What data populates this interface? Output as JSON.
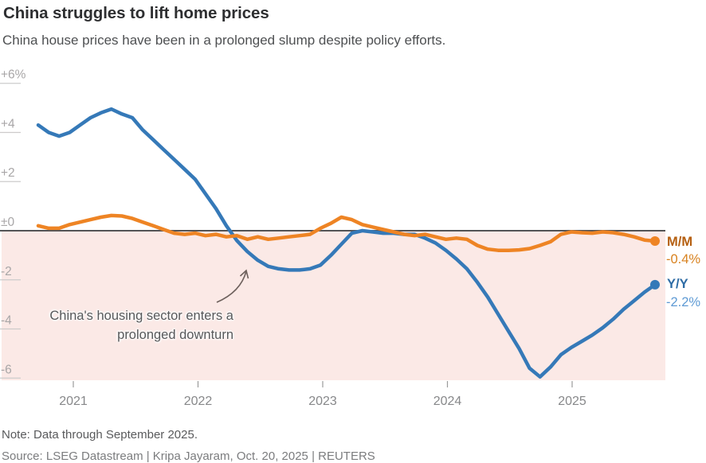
{
  "header": {
    "title": "China struggles to lift home prices",
    "subtitle": "China house prices have been in a prolonged slump despite policy efforts."
  },
  "chart_data": {
    "type": "line",
    "title": "China struggles to lift home prices",
    "x": [
      "2020-10",
      "2020-11",
      "2020-12",
      "2021-01",
      "2021-02",
      "2021-03",
      "2021-04",
      "2021-05",
      "2021-06",
      "2021-07",
      "2021-08",
      "2021-09",
      "2021-10",
      "2021-11",
      "2021-12",
      "2022-01",
      "2022-02",
      "2022-03",
      "2022-04",
      "2022-05",
      "2022-06",
      "2022-07",
      "2022-08",
      "2022-09",
      "2022-10",
      "2022-11",
      "2022-12",
      "2023-01",
      "2023-02",
      "2023-03",
      "2023-04",
      "2023-05",
      "2023-06",
      "2023-07",
      "2023-08",
      "2023-09",
      "2023-10",
      "2023-11",
      "2023-12",
      "2024-01",
      "2024-02",
      "2024-03",
      "2024-04",
      "2024-05",
      "2024-06",
      "2024-07",
      "2024-08",
      "2024-09",
      "2024-10",
      "2024-11",
      "2024-12",
      "2025-01",
      "2025-02",
      "2025-03",
      "2025-04",
      "2025-05",
      "2025-06",
      "2025-07",
      "2025-08",
      "2025-09"
    ],
    "series": [
      {
        "name": "Y/Y",
        "label": "Y/Y",
        "value_label": "-2.2%",
        "color": "#3579b8",
        "values": [
          4.3,
          4.0,
          3.85,
          4.0,
          4.3,
          4.6,
          4.8,
          4.95,
          4.75,
          4.6,
          4.1,
          3.7,
          3.3,
          2.9,
          2.5,
          2.1,
          1.5,
          0.9,
          0.2,
          -0.4,
          -0.85,
          -1.2,
          -1.45,
          -1.55,
          -1.6,
          -1.6,
          -1.55,
          -1.4,
          -1.0,
          -0.55,
          -0.1,
          0.0,
          -0.05,
          -0.1,
          -0.1,
          -0.15,
          -0.15,
          -0.3,
          -0.5,
          -0.8,
          -1.15,
          -1.55,
          -2.1,
          -2.7,
          -3.4,
          -4.1,
          -4.8,
          -5.6,
          -5.95,
          -5.55,
          -5.05,
          -4.75,
          -4.5,
          -4.25,
          -3.95,
          -3.6,
          -3.2,
          -2.85,
          -2.5,
          -2.2
        ]
      },
      {
        "name": "M/M",
        "label": "M/M",
        "value_label": "-0.4%",
        "color": "#ee8424",
        "values": [
          0.2,
          0.1,
          0.1,
          0.25,
          0.35,
          0.45,
          0.55,
          0.62,
          0.6,
          0.5,
          0.35,
          0.2,
          0.05,
          -0.1,
          -0.15,
          -0.1,
          -0.2,
          -0.15,
          -0.25,
          -0.2,
          -0.35,
          -0.25,
          -0.35,
          -0.3,
          -0.25,
          -0.2,
          -0.15,
          0.1,
          0.3,
          0.55,
          0.45,
          0.25,
          0.15,
          0.05,
          -0.05,
          -0.15,
          -0.2,
          -0.15,
          -0.25,
          -0.35,
          -0.3,
          -0.35,
          -0.6,
          -0.75,
          -0.8,
          -0.8,
          -0.78,
          -0.73,
          -0.6,
          -0.45,
          -0.15,
          -0.05,
          -0.08,
          -0.1,
          -0.05,
          -0.08,
          -0.15,
          -0.25,
          -0.38,
          -0.42
        ]
      }
    ],
    "ylim": [
      -6.5,
      6.6
    ],
    "yticks": [
      {
        "value": 6,
        "label": "+6%"
      },
      {
        "value": 4,
        "label": "+4"
      },
      {
        "value": 2,
        "label": "+2"
      },
      {
        "value": 0,
        "label": "±0"
      },
      {
        "value": -2,
        "label": "-2"
      },
      {
        "value": -4,
        "label": "-4"
      },
      {
        "value": -6,
        "label": "-6"
      }
    ],
    "xticks": [
      "2021",
      "2022",
      "2023",
      "2024",
      "2025"
    ],
    "grid": "left-ticks-only",
    "legend_position": "right-end-of-lines",
    "negative_region_shaded": true,
    "annotation": {
      "line1": "China's housing sector enters a",
      "line2": "prolonged downturn"
    }
  },
  "footer": {
    "note": "Note: Data through September 2025.",
    "source": "Source: LSEG Datastream | Kripa Jayaram, Oct. 20, 2025 | REUTERS"
  },
  "colors": {
    "yy_line": "#3579b8",
    "mm_line": "#ee8424",
    "yy_label_text": "#2e6ca5",
    "yy_value_text": "#5f9bd4",
    "mm_label_text": "#b55f10",
    "mm_value_text": "#d8821f",
    "negative_region": "#fbe9e6",
    "zero_line": "#545456",
    "tick": "#cdcbcb",
    "x_tick": "#9b9b9b",
    "axis_text": "#a8a6a7",
    "year_text": "#87888a",
    "arrow": "#6e615d"
  }
}
